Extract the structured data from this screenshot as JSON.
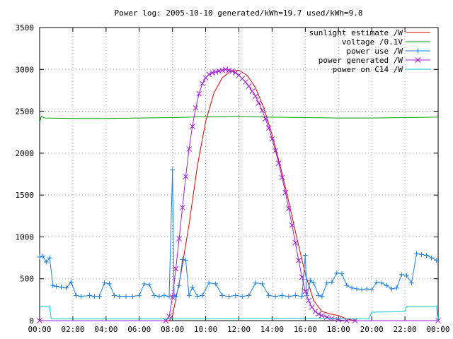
{
  "chart_data": {
    "type": "line",
    "title": "Power log: 2005-10-10 generated/kWh=19.7 used/kWh=9.8",
    "xlabel": "",
    "ylabel": "",
    "xlim_hours": [
      0,
      24
    ],
    "ylim": [
      0,
      3500
    ],
    "x_tick_labels": [
      "00:00",
      "02:00",
      "04:00",
      "06:00",
      "08:00",
      "10:00",
      "12:00",
      "14:00",
      "16:00",
      "18:00",
      "20:00",
      "22:00",
      "00:00"
    ],
    "y_ticks": [
      0,
      500,
      1000,
      1500,
      2000,
      2500,
      3000,
      3500
    ],
    "grid": true,
    "legend_position": "top-right",
    "series": [
      {
        "name": "sunlight estimate /W",
        "color": "#e00000",
        "marker": "none",
        "x_hours": [
          0,
          7.8,
          8.0,
          8.5,
          9.0,
          9.5,
          10.0,
          10.5,
          11.0,
          11.5,
          12.0,
          12.5,
          13.0,
          13.5,
          14.0,
          14.5,
          15.0,
          15.5,
          16.0,
          16.5,
          17.0,
          17.5,
          18.0,
          18.5,
          19.0,
          24
        ],
        "values": [
          0,
          0,
          60,
          550,
          1150,
          1850,
          2380,
          2720,
          2900,
          2980,
          2990,
          2930,
          2780,
          2540,
          2220,
          1840,
          1420,
          980,
          560,
          240,
          110,
          80,
          60,
          20,
          0,
          0
        ]
      },
      {
        "name": "voltage /0.1V",
        "color": "#00a000",
        "marker": "none",
        "x_hours": [
          0,
          0.1,
          0.3,
          2,
          4,
          6,
          8,
          10,
          12,
          14,
          16,
          18,
          20,
          22,
          24
        ],
        "values": [
          2370,
          2440,
          2420,
          2415,
          2415,
          2420,
          2425,
          2435,
          2440,
          2430,
          2425,
          2420,
          2420,
          2425,
          2430
        ]
      },
      {
        "name": "power use /W",
        "color": "#2080e0",
        "marker": "plus",
        "x_hours": [
          0.0,
          0.2,
          0.4,
          0.6,
          0.8,
          1.0,
          1.3,
          1.6,
          1.9,
          2.2,
          2.5,
          3.0,
          3.3,
          3.6,
          3.9,
          4.2,
          4.5,
          4.8,
          5.2,
          5.6,
          6.0,
          6.3,
          6.6,
          6.9,
          7.2,
          7.5,
          7.8,
          8.0,
          8.1,
          8.2,
          8.4,
          8.6,
          8.8,
          9.0,
          9.2,
          9.5,
          9.8,
          10.2,
          10.6,
          11.0,
          11.4,
          11.8,
          12.2,
          12.6,
          13.0,
          13.4,
          13.8,
          14.2,
          14.6,
          15.0,
          15.4,
          15.8,
          16.0,
          16.1,
          16.3,
          16.5,
          16.8,
          17.0,
          17.3,
          17.6,
          17.9,
          18.2,
          18.5,
          18.8,
          19.1,
          19.4,
          19.7,
          20.0,
          20.3,
          20.6,
          20.9,
          21.2,
          21.5,
          21.8,
          22.1,
          22.4,
          22.7,
          23.0,
          23.3,
          23.6,
          23.9
        ],
        "values": [
          760,
          770,
          700,
          750,
          420,
          410,
          400,
          390,
          460,
          300,
          290,
          300,
          290,
          290,
          450,
          440,
          300,
          290,
          290,
          290,
          300,
          440,
          430,
          300,
          290,
          300,
          290,
          1800,
          300,
          290,
          420,
          730,
          720,
          300,
          400,
          290,
          300,
          450,
          440,
          300,
          290,
          300,
          290,
          300,
          450,
          440,
          300,
          290,
          300,
          290,
          300,
          290,
          780,
          300,
          480,
          450,
          300,
          290,
          450,
          460,
          570,
          560,
          420,
          390,
          380,
          370,
          380,
          370,
          460,
          450,
          420,
          380,
          390,
          550,
          540,
          450,
          800,
          790,
          780,
          750,
          720
        ]
      },
      {
        "name": "power generated /W",
        "color": "#a020e0",
        "marker": "cross",
        "x_hours": [
          0,
          7.6,
          7.8,
          8.0,
          8.2,
          8.4,
          8.6,
          8.8,
          9.0,
          9.2,
          9.4,
          9.6,
          9.8,
          10.0,
          10.2,
          10.4,
          10.6,
          10.8,
          11.0,
          11.2,
          11.4,
          11.6,
          11.8,
          12.0,
          12.2,
          12.4,
          12.6,
          12.8,
          13.0,
          13.2,
          13.4,
          13.6,
          13.8,
          14.0,
          14.2,
          14.4,
          14.6,
          14.8,
          15.0,
          15.2,
          15.4,
          15.6,
          15.8,
          16.0,
          16.2,
          16.4,
          16.6,
          16.8,
          17.0,
          17.3,
          17.6,
          18.0,
          18.5,
          19.0,
          24
        ],
        "values": [
          0,
          0,
          50,
          280,
          620,
          980,
          1350,
          1720,
          2050,
          2320,
          2540,
          2710,
          2830,
          2900,
          2940,
          2960,
          2970,
          2980,
          2990,
          3000,
          2990,
          2980,
          2960,
          2930,
          2890,
          2850,
          2800,
          2740,
          2680,
          2600,
          2510,
          2410,
          2300,
          2170,
          2030,
          1880,
          1710,
          1530,
          1340,
          1140,
          930,
          720,
          520,
          350,
          240,
          160,
          110,
          80,
          60,
          40,
          25,
          10,
          0,
          0,
          0
        ]
      },
      {
        "name": "power on C14 /W",
        "color": "#00d0d0",
        "marker": "none",
        "x_hours": [
          0,
          0.1,
          0.6,
          0.7,
          8.0,
          16.0,
          19.8,
          20.0,
          22.0,
          22.1,
          23.9,
          24
        ],
        "values": [
          170,
          170,
          170,
          20,
          20,
          30,
          20,
          100,
          110,
          170,
          170,
          0
        ]
      }
    ]
  }
}
